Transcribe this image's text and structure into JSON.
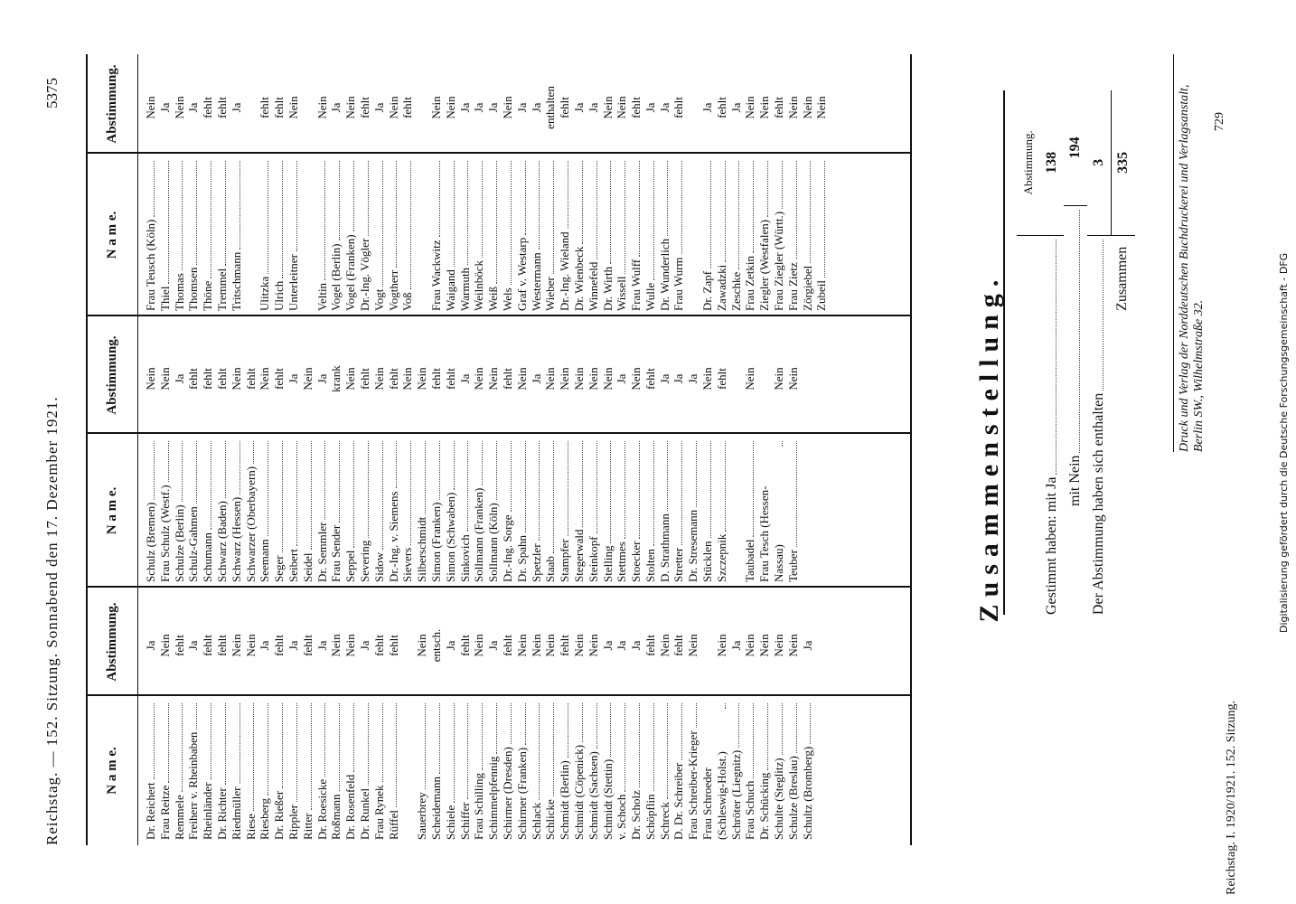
{
  "header": {
    "left": "Reichstag. — 152. Sitzung. Sonnabend den 17. Dezember 1921.",
    "page": "5375"
  },
  "table": {
    "headers": [
      "N a m e.",
      "Abstimmung."
    ],
    "columns": [
      {
        "groups": [
          [
            {
              "name": "Dr. Reichert",
              "vote": "Ja"
            },
            {
              "name": "Frau Reitze",
              "vote": "Nein"
            },
            {
              "name": "Remmele",
              "vote": "fehlt"
            },
            {
              "name": "Freiherr v. Rheinbaben",
              "vote": "Ja"
            },
            {
              "name": "Rheinländer",
              "vote": "fehlt"
            },
            {
              "name": "Dr. Richter",
              "vote": "fehlt"
            },
            {
              "name": "Riedmüller",
              "vote": "Nein"
            },
            {
              "name": "Riese",
              "vote": "Nein"
            },
            {
              "name": "Riesberg",
              "vote": "Ja"
            },
            {
              "name": "Dr. Rießer",
              "vote": "fehlt"
            },
            {
              "name": "Rippler",
              "vote": "Ja"
            },
            {
              "name": "Ritter",
              "vote": "fehlt"
            },
            {
              "name": "Dr. Roesicke",
              "vote": "Ja"
            },
            {
              "name": "Roßmann",
              "vote": "Nein"
            },
            {
              "name": "Dr. Rosenfeld",
              "vote": "Nein"
            },
            {
              "name": "Dr. Runkel",
              "vote": "Ja"
            },
            {
              "name": "Frau Rynek",
              "vote": "fehlt"
            },
            {
              "name": "Rüffel",
              "vote": "fehlt"
            }
          ],
          [
            {
              "name": "Sauerbrey",
              "vote": "Nein"
            },
            {
              "name": "Scheidemann",
              "vote": "entsch."
            },
            {
              "name": "Schiele",
              "vote": "Ja"
            },
            {
              "name": "Schiffer",
              "vote": "fehlt"
            },
            {
              "name": "Frau Schilling",
              "vote": "Nein"
            },
            {
              "name": "Schimmelpfennig",
              "vote": "Ja"
            },
            {
              "name": "Schirmer (Dresden)",
              "vote": "fehlt"
            },
            {
              "name": "Schirmer (Franken)",
              "vote": "Nein"
            },
            {
              "name": "Schlack",
              "vote": "Nein"
            },
            {
              "name": "Schlicke",
              "vote": "Nein"
            },
            {
              "name": "Schmidt (Berlin)",
              "vote": "fehlt"
            },
            {
              "name": "Schmidt (Cöpenick)",
              "vote": "Nein"
            },
            {
              "name": "Schmidt (Sachsen)",
              "vote": "Nein"
            },
            {
              "name": "Schmidt (Stettin)",
              "vote": "Ja"
            },
            {
              "name": "v. Schoch",
              "vote": "Ja"
            },
            {
              "name": "Dr. Scholz",
              "vote": "Ja"
            },
            {
              "name": "Schöpflin",
              "vote": "fehlt"
            },
            {
              "name": "Schreck",
              "vote": "Nein"
            },
            {
              "name": "D. Dr. Schreiber",
              "vote": "fehlt"
            },
            {
              "name": "Frau Schreiber-Krieger",
              "vote": "Nein"
            },
            {
              "name": "Frau Schroeder (Schleswig-Holst.)",
              "vote": "Nein"
            },
            {
              "name": "Schröter (Liegnitz)",
              "vote": "Ja"
            },
            {
              "name": "Frau Schuch",
              "vote": "Nein"
            },
            {
              "name": "Dr. Schücking",
              "vote": "Nein"
            },
            {
              "name": "Schulte (Steglitz)",
              "vote": "Nein"
            },
            {
              "name": "Schulze (Breslau)",
              "vote": "Nein"
            },
            {
              "name": "Schultz (Bromberg)",
              "vote": "Ja"
            }
          ]
        ]
      },
      {
        "groups": [
          [
            {
              "name": "Schulz (Bremen)",
              "vote": "Nein"
            },
            {
              "name": "Frau Schulz (Westf.)",
              "vote": "Nein"
            },
            {
              "name": "Schulze (Berlin)",
              "vote": "Ja"
            },
            {
              "name": "Schulz-Gahmen",
              "vote": "fehlt"
            },
            {
              "name": "Schumann",
              "vote": "fehlt"
            },
            {
              "name": "Schwarz (Baden)",
              "vote": "fehlt"
            },
            {
              "name": "Schwarz (Hessen)",
              "vote": "Nein"
            },
            {
              "name": "Schwarzer (Oberbayern)",
              "vote": "fehlt"
            },
            {
              "name": "Seemann",
              "vote": "Nein"
            },
            {
              "name": "Seger",
              "vote": "fehlt"
            },
            {
              "name": "Seibert",
              "vote": "Ja"
            },
            {
              "name": "Seidel",
              "vote": "Nein"
            },
            {
              "name": "Dr. Semmler",
              "vote": "Ja"
            },
            {
              "name": "Frau Sender",
              "vote": "krank"
            },
            {
              "name": "Seppel",
              "vote": "Nein"
            },
            {
              "name": "Severing",
              "vote": "fehlt"
            },
            {
              "name": "Sidow",
              "vote": "Nein"
            },
            {
              "name": "Dr.-Ing. v. Siemens",
              "vote": "fehlt"
            },
            {
              "name": "Sievers",
              "vote": "Nein"
            },
            {
              "name": "Silberschmidt",
              "vote": "Nein"
            },
            {
              "name": "Simon (Franken)",
              "vote": "fehlt"
            },
            {
              "name": "Simon (Schwaben)",
              "vote": "fehlt"
            },
            {
              "name": "Sinkovich",
              "vote": "Ja"
            },
            {
              "name": "Sollmann (Franken)",
              "vote": "Nein"
            },
            {
              "name": "Sollmann (Köln)",
              "vote": "Nein"
            },
            {
              "name": "Dr.-Ing. Sorge",
              "vote": "fehlt"
            },
            {
              "name": "Dr. Spahn",
              "vote": "Nein"
            },
            {
              "name": "Spetzler",
              "vote": "Ja"
            },
            {
              "name": "Staab",
              "vote": "Nein"
            },
            {
              "name": "Stampfer",
              "vote": "Nein"
            },
            {
              "name": "Stegerwald",
              "vote": "Nein"
            },
            {
              "name": "Steinkopf",
              "vote": "Nein"
            },
            {
              "name": "Stelling",
              "vote": "Nein"
            },
            {
              "name": "Stettmes",
              "vote": "Ja"
            },
            {
              "name": "Stoecker",
              "vote": "Nein"
            },
            {
              "name": "Stolten",
              "vote": "fehlt"
            },
            {
              "name": "D. Strathmann",
              "vote": "Ja"
            },
            {
              "name": "Stretter",
              "vote": "Ja"
            },
            {
              "name": "Dr. Stresemann",
              "vote": "Ja"
            },
            {
              "name": "Stücklen",
              "vote": "Nein"
            },
            {
              "name": "Szczepnik",
              "vote": "fehlt"
            }
          ],
          [
            {
              "name": "Taubadel",
              "vote": "Nein"
            },
            {
              "name": "Frau Tesch (Hessen-Nassau)",
              "vote": "Nein"
            },
            {
              "name": "Teuber",
              "vote": "Nein"
            }
          ]
        ]
      },
      {
        "groups": [
          [
            {
              "name": "Frau Teusch (Köln)",
              "vote": "Nein"
            },
            {
              "name": "Thiel",
              "vote": "Ja"
            },
            {
              "name": "Thomas",
              "vote": "Nein"
            },
            {
              "name": "Thomsen",
              "vote": "Ja"
            },
            {
              "name": "Thöne",
              "vote": "fehlt"
            },
            {
              "name": "Tremmel",
              "vote": "fehlt"
            },
            {
              "name": "Tritschmann",
              "vote": "Ja"
            }
          ],
          [
            {
              "name": "Ulitzka",
              "vote": "fehlt"
            },
            {
              "name": "Ulrich",
              "vote": "fehlt"
            },
            {
              "name": "Unterleitner",
              "vote": "Nein"
            }
          ],
          [
            {
              "name": "Veltin",
              "vote": "Nein"
            },
            {
              "name": "Vogel (Berlin)",
              "vote": "Ja"
            },
            {
              "name": "Vogel (Franken)",
              "vote": "Nein"
            },
            {
              "name": "Dr.-Ing. Vögler",
              "vote": "fehlt"
            },
            {
              "name": "Vogt",
              "vote": "Ja"
            },
            {
              "name": "Vogtherr",
              "vote": "Nein"
            },
            {
              "name": "Voß",
              "vote": "fehlt"
            }
          ],
          [
            {
              "name": "Frau Wackwitz",
              "vote": "Nein"
            },
            {
              "name": "Waigand",
              "vote": "Nein"
            },
            {
              "name": "Warmuth",
              "vote": "Ja"
            },
            {
              "name": "Weilnböck",
              "vote": "Ja"
            },
            {
              "name": "Weiß",
              "vote": "Ja"
            },
            {
              "name": "Wels",
              "vote": "Nein"
            },
            {
              "name": "Graf v. Westarp",
              "vote": "Ja"
            },
            {
              "name": "Westermann",
              "vote": "Ja"
            },
            {
              "name": "Wieber",
              "vote": "enthalten"
            },
            {
              "name": "Dr.-Ing. Wieland",
              "vote": "fehlt"
            },
            {
              "name": "Dr. Wienbeck",
              "vote": "Ja"
            },
            {
              "name": "Winnefeld",
              "vote": "Ja"
            },
            {
              "name": "Dr. Wirth",
              "vote": "Nein"
            },
            {
              "name": "Wissell",
              "vote": "Nein"
            },
            {
              "name": "Frau Wulff",
              "vote": "fehlt"
            },
            {
              "name": "Wulle",
              "vote": "Ja"
            },
            {
              "name": "Dr. Wunderlich",
              "vote": "Ja"
            },
            {
              "name": "Frau Wurm",
              "vote": "fehlt"
            }
          ],
          [
            {
              "name": "Dr. Zapf",
              "vote": "Ja"
            },
            {
              "name": "Zawadzki",
              "vote": "fehlt"
            },
            {
              "name": "Zeschke",
              "vote": "Ja"
            },
            {
              "name": "Frau Zetkin",
              "vote": "Nein"
            },
            {
              "name": "Ziegler (Westfalen)",
              "vote": "Nein"
            },
            {
              "name": "Frau Ziegler (Württ.)",
              "vote": "fehlt"
            },
            {
              "name": "Frau Zietz",
              "vote": "Nein"
            },
            {
              "name": "Zörgiebel",
              "vote": "Nein"
            },
            {
              "name": "Zubeil",
              "vote": "Nein"
            }
          ]
        ]
      }
    ]
  },
  "summary": {
    "title": "Zusammenstellung.",
    "vote_header": "Abstimmung.",
    "rows": [
      {
        "label": "Gestimmt haben: mit Ja",
        "value": 138
      },
      {
        "label": "mit Nein",
        "value": 194
      },
      {
        "label": "Der Abstimmung haben sich enthalten",
        "value": 3
      }
    ],
    "total": {
      "label": "Zusammen",
      "value": 335
    }
  },
  "imprint": "Druck und Verlag der Norddeutschen Buchdruckerei und Verlagsanstalt, Berlin SW., Wilhelmstraße 32.",
  "imprint_number": "729",
  "footer": "Reichstag. I. 1920/1921. 152. Sitzung.",
  "credit": "Digitalisierung gefördert durch die Deutsche Forschungsgemeinschaft - DFG"
}
